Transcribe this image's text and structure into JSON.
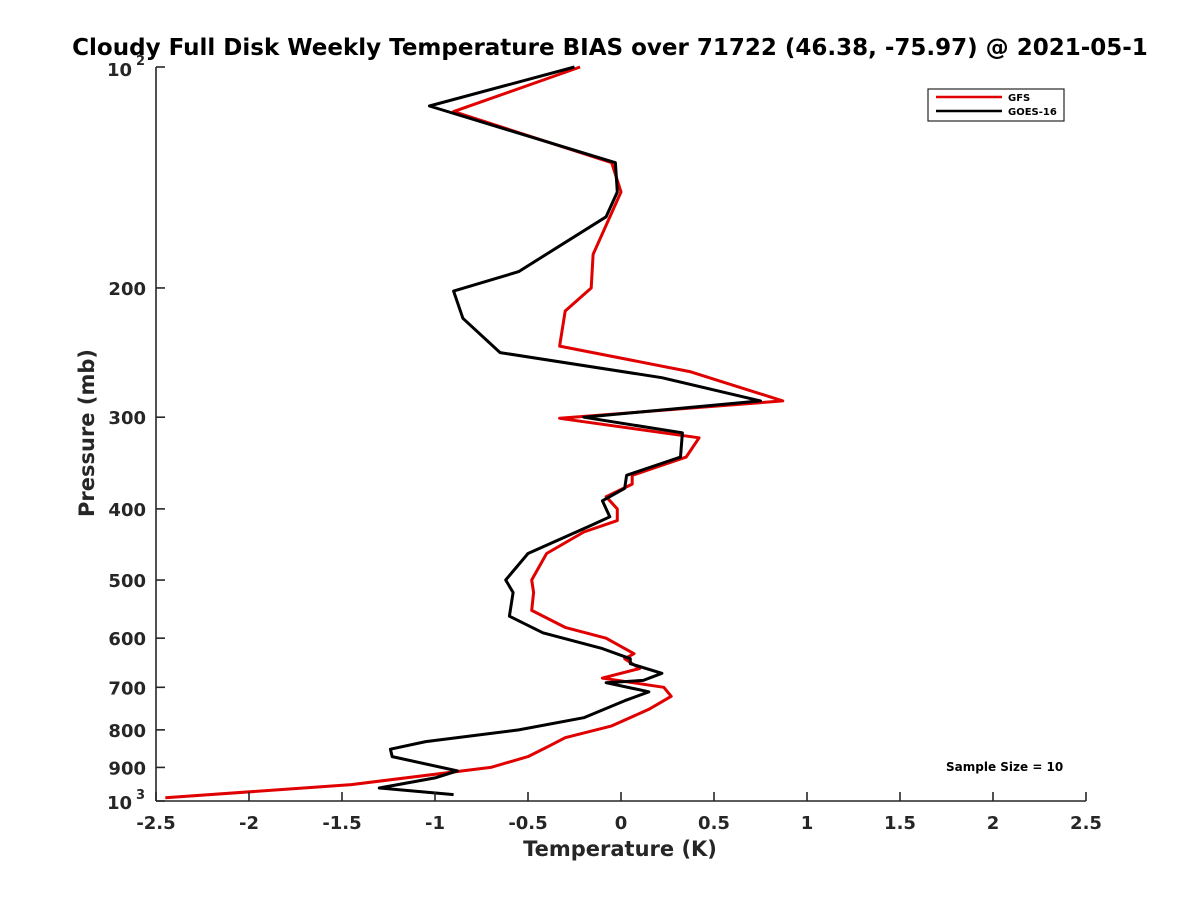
{
  "chart_data": {
    "type": "line",
    "title": "Cloudy Full Disk Weekly Temperature BIAS over 71722 (46.38, -75.97) @ 2021-05-1",
    "xlabel": "Temperature (K)",
    "ylabel": "Pressure (mb)",
    "xlim": [
      -2.5,
      2.5
    ],
    "ylim": [
      100,
      1000
    ],
    "y_scale": "log",
    "y_reversed": true,
    "x_ticks": [
      "-2.5",
      "-2",
      "-1.5",
      "-1",
      "-0.5",
      "0",
      "0.5",
      "1",
      "1.5",
      "2",
      "2.5"
    ],
    "x_tick_values": [
      -2.5,
      -2,
      -1.5,
      -1,
      -0.5,
      0,
      0.5,
      1,
      1.5,
      2,
      2.5
    ],
    "y_ticks": [
      "200",
      "300",
      "400",
      "500",
      "600",
      "700",
      "800",
      "900"
    ],
    "y_tick_values": [
      200,
      300,
      400,
      500,
      600,
      700,
      800,
      900
    ],
    "y_end_labels": {
      "top_base": "10",
      "top_exp": "2",
      "bottom_base": "10",
      "bottom_exp": "3"
    },
    "grid": false,
    "legend_position": "top-right",
    "annotation": "Sample Size = 10",
    "series": [
      {
        "name": "GFS",
        "color": "#e00000",
        "points": [
          [
            -0.22,
            100
          ],
          [
            -0.9,
            115
          ],
          [
            -0.05,
            135
          ],
          [
            0,
            148
          ],
          [
            -0.15,
            180
          ],
          [
            -0.16,
            200
          ],
          [
            -0.3,
            215
          ],
          [
            -0.33,
            240
          ],
          [
            0.37,
            260
          ],
          [
            0.87,
            285
          ],
          [
            -0.33,
            301
          ],
          [
            0.42,
            320
          ],
          [
            0.35,
            340
          ],
          [
            0.06,
            360
          ],
          [
            0.06,
            370
          ],
          [
            -0.08,
            385
          ],
          [
            -0.02,
            400
          ],
          [
            -0.02,
            415
          ],
          [
            -0.2,
            430
          ],
          [
            -0.4,
            460
          ],
          [
            -0.48,
            500
          ],
          [
            -0.47,
            520
          ],
          [
            -0.48,
            550
          ],
          [
            -0.3,
            580
          ],
          [
            -0.08,
            600
          ],
          [
            0.07,
            630
          ],
          [
            0.02,
            640
          ],
          [
            0.1,
            660
          ],
          [
            -0.1,
            680
          ],
          [
            0.23,
            700
          ],
          [
            0.27,
            720
          ],
          [
            0.15,
            750
          ],
          [
            -0.05,
            790
          ],
          [
            -0.3,
            820
          ],
          [
            -0.38,
            840
          ],
          [
            -0.5,
            870
          ],
          [
            -0.7,
            900
          ],
          [
            -1.45,
            950
          ],
          [
            -2.45,
            990
          ]
        ]
      },
      {
        "name": "GOES-16",
        "color": "#000000",
        "points": [
          [
            -0.25,
            100
          ],
          [
            -1.03,
            113
          ],
          [
            -0.03,
            135
          ],
          [
            -0.02,
            148
          ],
          [
            -0.08,
            160
          ],
          [
            -0.55,
            190
          ],
          [
            -0.9,
            202
          ],
          [
            -0.85,
            220
          ],
          [
            -0.65,
            245
          ],
          [
            0.22,
            265
          ],
          [
            0.75,
            285
          ],
          [
            -0.2,
            300
          ],
          [
            0.33,
            315
          ],
          [
            0.32,
            340
          ],
          [
            0.03,
            360
          ],
          [
            0.02,
            375
          ],
          [
            -0.1,
            390
          ],
          [
            -0.06,
            410
          ],
          [
            -0.15,
            420
          ],
          [
            -0.5,
            460
          ],
          [
            -0.62,
            500
          ],
          [
            -0.58,
            520
          ],
          [
            -0.6,
            560
          ],
          [
            -0.42,
            590
          ],
          [
            -0.1,
            620
          ],
          [
            0.05,
            640
          ],
          [
            0.05,
            650
          ],
          [
            0.22,
            670
          ],
          [
            0.12,
            685
          ],
          [
            -0.08,
            690
          ],
          [
            0.15,
            710
          ],
          [
            0.02,
            730
          ],
          [
            -0.2,
            770
          ],
          [
            -0.55,
            800
          ],
          [
            -1.05,
            830
          ],
          [
            -1.24,
            850
          ],
          [
            -1.23,
            870
          ],
          [
            -0.88,
            910
          ],
          [
            -1.0,
            930
          ],
          [
            -1.3,
            960
          ],
          [
            -0.9,
            980
          ]
        ]
      }
    ]
  }
}
